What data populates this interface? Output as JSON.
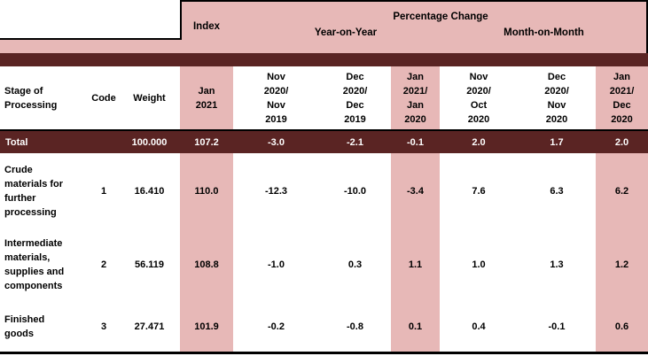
{
  "header": {
    "index": "Index",
    "percentage_change": "Percentage Change",
    "year_on_year": "Year-on-Year",
    "month_on_month": "Month-on-Month"
  },
  "columns": [
    "Stage of\nProcessing",
    "Code",
    "Weight",
    "Jan\n2021",
    "Nov\n2020/\nNov\n2019",
    "Dec\n2020/\nDec\n2019",
    "Jan\n2021/\nJan\n2020",
    "Nov\n2020/\nOct\n2020",
    "Dec\n2020/\nNov\n2020",
    "Jan\n2021/\nDec\n2020"
  ],
  "rows": [
    {
      "stage": "Total",
      "code": "",
      "weight": "100.000",
      "index": "107.2",
      "yoy_nov": "-3.0",
      "yoy_dec": "-2.1",
      "yoy_jan": "-0.1",
      "mom_nov": "2.0",
      "mom_dec": "1.7",
      "mom_jan": "2.0"
    },
    {
      "stage": "Crude\nmaterials for\nfurther\nprocessing",
      "code": "1",
      "weight": "16.410",
      "index": "110.0",
      "yoy_nov": "-12.3",
      "yoy_dec": "-10.0",
      "yoy_jan": "-3.4",
      "mom_nov": "7.6",
      "mom_dec": "6.3",
      "mom_jan": "6.2"
    },
    {
      "stage": "Intermediate\nmaterials,\nsupplies and\ncomponents",
      "code": "2",
      "weight": "56.119",
      "index": "108.8",
      "yoy_nov": "-1.0",
      "yoy_dec": "0.3",
      "yoy_jan": "1.1",
      "mom_nov": "1.0",
      "mom_dec": "1.3",
      "mom_jan": "1.2"
    },
    {
      "stage": "Finished\ngoods",
      "code": "3",
      "weight": "27.471",
      "index": "101.9",
      "yoy_nov": "-0.2",
      "yoy_dec": "-0.8",
      "yoy_jan": "0.1",
      "mom_nov": "0.4",
      "mom_dec": "-0.1",
      "mom_jan": "0.6"
    }
  ],
  "colors": {
    "pink_highlight": "#e7b8b7",
    "maroon": "#5a2423",
    "total_row_text": "#ffffff",
    "line": "#000000"
  },
  "chart_data": {
    "type": "table",
    "title": "Producer price index by stage of processing",
    "column_groups": [
      "Index",
      "Percentage Change — Year-on-Year",
      "Percentage Change — Month-on-Month"
    ],
    "columns": [
      "Stage of Processing",
      "Code",
      "Weight",
      "Index Jan 2021",
      "Nov 2020/Nov 2019",
      "Dec 2020/Dec 2019",
      "Jan 2021/Jan 2020",
      "Nov 2020/Oct 2020",
      "Dec 2020/Nov 2020",
      "Jan 2021/Dec 2020"
    ],
    "rows": [
      [
        "Total",
        null,
        100.0,
        107.2,
        -3.0,
        -2.1,
        -0.1,
        2.0,
        1.7,
        2.0
      ],
      [
        "Crude materials for further processing",
        1,
        16.41,
        110.0,
        -12.3,
        -10.0,
        -3.4,
        7.6,
        6.3,
        6.2
      ],
      [
        "Intermediate materials, supplies and components",
        2,
        56.119,
        108.8,
        -1.0,
        0.3,
        1.1,
        1.0,
        1.3,
        1.2
      ],
      [
        "Finished goods",
        3,
        27.471,
        101.9,
        -0.2,
        -0.8,
        0.1,
        0.4,
        -0.1,
        0.6
      ]
    ]
  }
}
